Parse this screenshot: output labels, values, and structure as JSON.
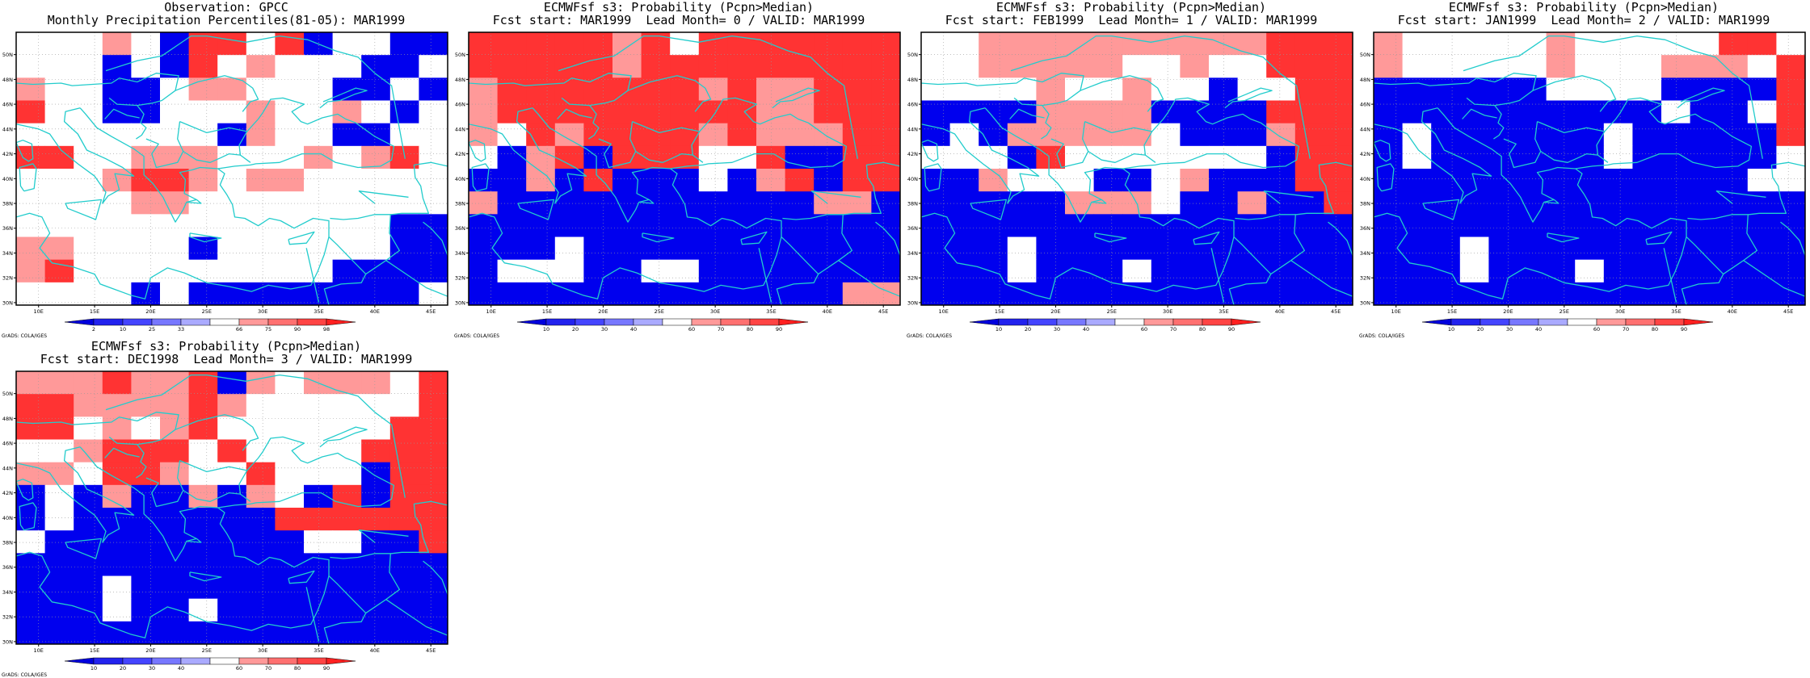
{
  "panels": [
    {
      "title_line1": "Observation: GPCC",
      "title_line2": "Monthly Precipitation Percentiles(81-05): MAR1999",
      "colorbar_labels": [
        "2",
        "10",
        "25",
        "33",
        "66",
        "75",
        "90",
        "98"
      ],
      "footer": "GrADS: COLA/IGES",
      "rows": [
        "WWWPWBRRWRBWWBB",
        "WWWBWBRWPWWWBBW",
        "PWWBBWPPWWWBBWB",
        "RWWBBWWWPWWPWBW",
        "WWWWWWWBPWWBBWW",
        "RRWWPPPWWWPWPRW",
        "WWWPRRPWPPWWWWW",
        "WWWWPPWWWWWWWWW",
        "WWWWWWWWWWWWWBB",
        "PPWWWWBWWWWWWBB",
        "PRWWWWWWWWWBBBB",
        "WWWWBWBBBBBBBBW"
      ]
    },
    {
      "title_line1": "ECMWFsf s3: Probability (Pcpn>Median)",
      "title_line2": "Fcst start: MAR1999  Lead Month= 0 / VALID: MAR1999",
      "colorbar_labels": [
        "10",
        "20",
        "30",
        "40",
        "60",
        "70",
        "80",
        "90"
      ],
      "footer": "GrADS: COLA/IGES",
      "rows": [
        "RRRRRPRWRRRRRRR",
        "RRRRRPRRRRRRRRR",
        "PRRRRRRRPRPPRRR",
        "PRRRRRRRRRPPRRR",
        "PWRPRRRRPRPPPRR",
        "WBPRBRRRWWRBBRR",
        "BBPBRBBBWBPRBRR",
        "PBBBBBBBBBBBPPB",
        "BBBBBBBBBBBBBBB",
        "BBBWBBBBBBBBBBB",
        "BWWWBBWWBBBBBBB",
        "BBBBBBBBBBBBBPP"
      ]
    },
    {
      "title_line1": "ECMWFsf s3: Probability (Pcpn>Median)",
      "title_line2": "Fcst start: FEB1999  Lead Month= 1 / VALID: MAR1999",
      "colorbar_labels": [
        "10",
        "20",
        "30",
        "40",
        "60",
        "70",
        "80",
        "90"
      ],
      "footer": "GrADS: COLA/IGES",
      "rows": [
        "WWPPPPPPPPPPRRR",
        "WWPPPPPWWPWWRRR",
        "WWWWPWWPWWBWWRR",
        "BBBBPPPPBBBBRRR",
        "BWBPPPPPWBBBPRR",
        "WWWBRWWWWWWWBRR",
        "BBPWWWBBWPBBBRR",
        "BBBBBPPPWBBPBBR",
        "BBBBBBBBBBBBBBB",
        "BBBWBBBBBBBBBBB",
        "BBBWBBBWBBBBBBB",
        "BBBBBBBBBBBBBBB"
      ]
    },
    {
      "title_line1": "ECMWFsf s3: Probability (Pcpn>Median)",
      "title_line2": "Fcst start: JAN1999  Lead Month= 2 / VALID: MAR1999",
      "colorbar_labels": [
        "10",
        "20",
        "30",
        "40",
        "60",
        "70",
        "80",
        "90"
      ],
      "footer": "GrADS: COLA/IGES",
      "rows": [
        "PWWWWWPWWWWWRRW",
        "PWWWWWPWWWPPPWR",
        "BBBBBBWWWWBBBBR",
        "BBBBBBBBBBWBBWR",
        "BWBBBBBBWBBBBBR",
        "BWBBBBBBWBBBBBW",
        "BBBBBBBBBBBBBWW",
        "BBBBBBBBBBBBBBB",
        "BBBBBBBBBBBBBBB",
        "BBBWBBBBBBBBBBB",
        "BBBWBBBWBBBBBBB",
        "BBBBBBBBBBBBBBB"
      ]
    },
    {
      "title_line1": "ECMWFsf s3: Probability (Pcpn>Median)",
      "title_line2": "Fcst start: DEC1998  Lead Month= 3 / VALID: MAR1999",
      "colorbar_labels": [
        "10",
        "20",
        "30",
        "40",
        "60",
        "70",
        "80",
        "90"
      ],
      "footer": "GrADS: COLA/IGES",
      "rows": [
        "PPPRPPRBPWPPPWR",
        "RRPPPPRPWWWWWWR",
        "RRWPWPRWWWWWWRR",
        "WWPRRRWRWWWWRRR",
        "PPWRRPWWRWWWBRR",
        "BWBPBBPBPWBRBRR",
        "BWBBBBBBBRRRRRR",
        "WBBBBBBBBBWWBBR",
        "BBBBBBBBBBBBBBB",
        "BBBWBBBBBBBBBBB",
        "BBBWBBWBBBBBBBB",
        "BBBBBBBBBBBBBBB"
      ]
    }
  ],
  "latitude_labels": [
    "50N",
    "48N",
    "46N",
    "44N",
    "42N",
    "40N",
    "38N",
    "36N",
    "34N",
    "32N",
    "30N"
  ],
  "longitude_labels": [
    "10E",
    "15E",
    "20E",
    "25E",
    "30E",
    "35E",
    "40E",
    "45E"
  ],
  "colors": {
    "R": "#ff3333",
    "P": "#ff9999",
    "W": "#ffffff",
    "L": "#aaaaff",
    "B": "#0000ee",
    "coast": "#22cccc",
    "scale": [
      "#0000dd",
      "#2222ee",
      "#4444ff",
      "#7777ff",
      "#aaaaff",
      "#ffffff",
      "#ff9999",
      "#ff7070",
      "#ff4444",
      "#ff2020"
    ]
  }
}
